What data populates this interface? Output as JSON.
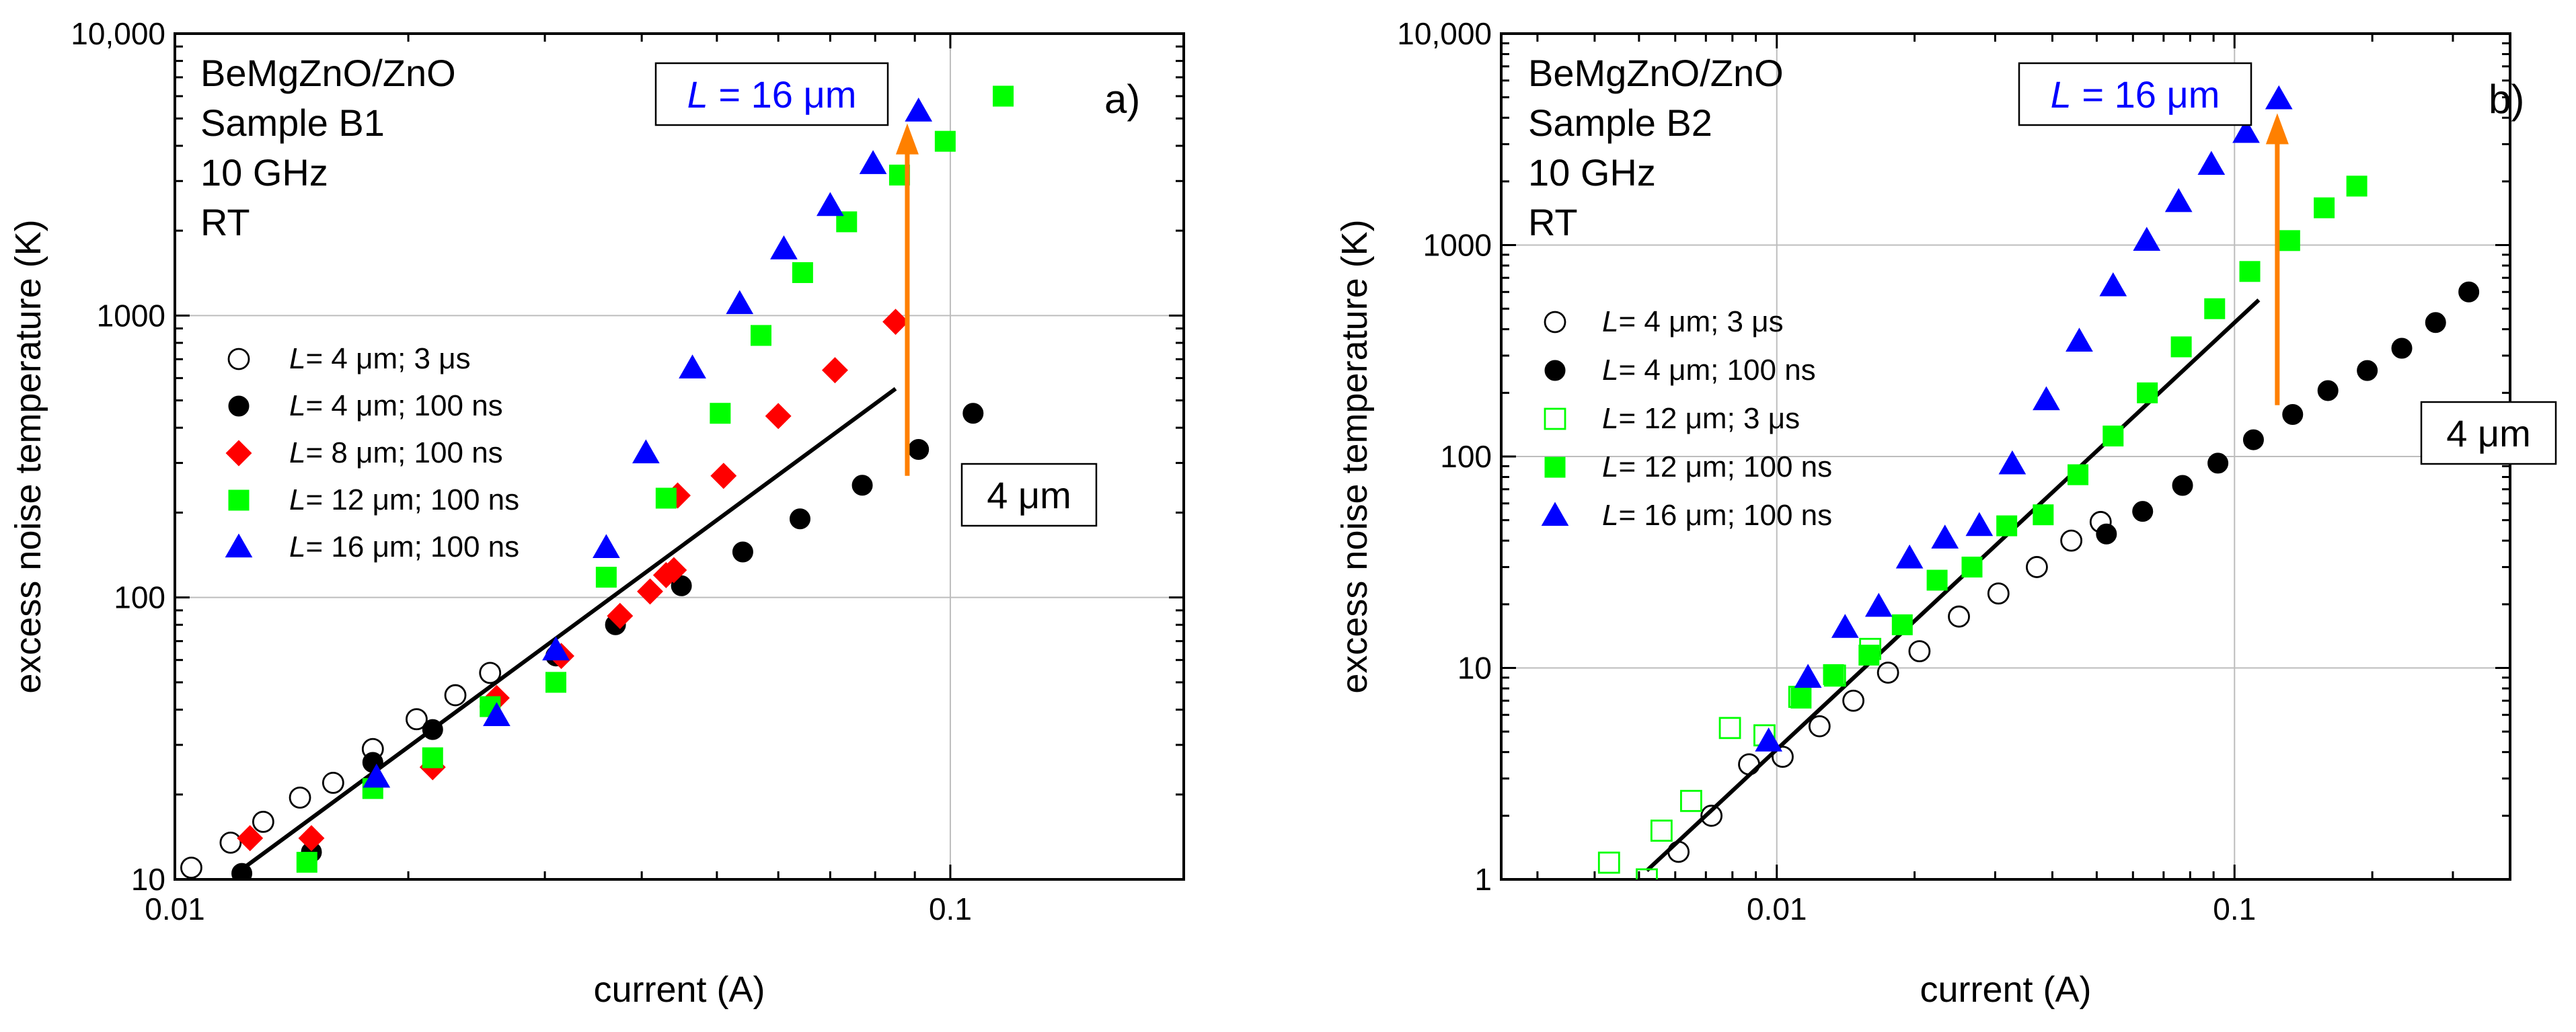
{
  "chart_data": [
    {
      "type": "scatter",
      "panel_label": "a)",
      "xlabel": "current (A)",
      "ylabel": "excess noise temperature (K)",
      "x_scale": "log",
      "y_scale": "log",
      "xlim": [
        0.01,
        0.2
      ],
      "ylim": [
        10,
        10000
      ],
      "x_ticks": [
        {
          "v": 0.01,
          "label": "0.01"
        },
        {
          "v": 0.1,
          "label": "0.1"
        }
      ],
      "y_ticks": [
        {
          "v": 10,
          "label": "10"
        },
        {
          "v": 100,
          "label": "100"
        },
        {
          "v": 1000,
          "label": "1000"
        },
        {
          "v": 10000,
          "label": "10,000"
        }
      ],
      "grid": true,
      "info_lines": [
        "BeMgZnO/ZnO",
        "Sample B1",
        "10 GHz",
        "RT"
      ],
      "box_top": {
        "italic": "L",
        "rest": " = 16 μm"
      },
      "box_bottom": "4 μm",
      "legend": [
        {
          "italic": "L",
          "rest": "= 4 μm; 3 μs",
          "series": 0
        },
        {
          "italic": "L",
          "rest": "= 4 μm; 100 ns",
          "series": 1
        },
        {
          "italic": "L",
          "rest": "= 8 μm; 100 ns",
          "series": 2
        },
        {
          "italic": "L",
          "rest": "= 12 μm; 100 ns",
          "series": 3
        },
        {
          "italic": "L",
          "rest": "= 16 μm; 100 ns",
          "series": 4
        }
      ],
      "series": [
        {
          "name": "L= 4 μm; 3 μs",
          "marker": "circle-open",
          "color": "#000000",
          "points": [
            [
              0.0105,
              11
            ],
            [
              0.0118,
              13.5
            ],
            [
              0.013,
              16
            ],
            [
              0.0145,
              19.5
            ],
            [
              0.016,
              22
            ],
            [
              0.018,
              29
            ],
            [
              0.0205,
              37
            ],
            [
              0.023,
              45
            ],
            [
              0.0255,
              54
            ]
          ]
        },
        {
          "name": "L= 4 μm; 100 ns",
          "marker": "circle",
          "color": "#000000",
          "points": [
            [
              0.0122,
              10.5
            ],
            [
              0.015,
              12.5
            ],
            [
              0.018,
              26
            ],
            [
              0.0215,
              34
            ],
            [
              0.0255,
              41
            ],
            [
              0.031,
              62
            ],
            [
              0.037,
              80
            ],
            [
              0.045,
              110
            ],
            [
              0.054,
              145
            ],
            [
              0.064,
              190
            ],
            [
              0.077,
              250
            ],
            [
              0.091,
              335
            ],
            [
              0.107,
              450
            ]
          ]
        },
        {
          "name": "L= 8 μm; 100 ns",
          "marker": "diamond",
          "color": "#ff0000",
          "points": [
            [
              0.0125,
              14
            ],
            [
              0.015,
              14
            ],
            [
              0.0215,
              25
            ],
            [
              0.026,
              44
            ],
            [
              0.0315,
              62
            ],
            [
              0.0375,
              86
            ],
            [
              0.041,
              105
            ],
            [
              0.043,
              120
            ],
            [
              0.044,
              125
            ],
            [
              0.0445,
              230
            ],
            [
              0.051,
              270
            ],
            [
              0.06,
              440
            ],
            [
              0.071,
              640
            ],
            [
              0.085,
              950
            ]
          ]
        },
        {
          "name": "L= 12 μm; 100 ns",
          "marker": "square",
          "color": "#00ff00",
          "points": [
            [
              0.0148,
              11.5
            ],
            [
              0.018,
              21
            ],
            [
              0.0215,
              27
            ],
            [
              0.0255,
              41
            ],
            [
              0.031,
              50
            ],
            [
              0.036,
              118
            ],
            [
              0.043,
              225
            ],
            [
              0.0505,
              450
            ],
            [
              0.057,
              850
            ],
            [
              0.0645,
              1420
            ],
            [
              0.0735,
              2150
            ],
            [
              0.086,
              3150
            ],
            [
              0.0985,
              4150
            ],
            [
              0.117,
              6000
            ]
          ]
        },
        {
          "name": "L= 16 μm; 100 ns",
          "marker": "triangle",
          "color": "#0000ff",
          "points": [
            [
              0.0182,
              23
            ],
            [
              0.026,
              38
            ],
            [
              0.031,
              65
            ],
            [
              0.036,
              150
            ],
            [
              0.0405,
              325
            ],
            [
              0.0465,
              650
            ],
            [
              0.0535,
              1100
            ],
            [
              0.061,
              1720
            ],
            [
              0.07,
              2450
            ],
            [
              0.0795,
              3450
            ],
            [
              0.091,
              5300
            ]
          ]
        }
      ],
      "fit_line": [
        [
          0.012,
          10.5
        ],
        [
          0.085,
          550
        ]
      ],
      "arrow": {
        "x": 0.088,
        "y_from": 270,
        "y_to": 4800,
        "color": "#ff8000"
      }
    },
    {
      "type": "scatter",
      "panel_label": "b)",
      "xlabel": "current (A)",
      "ylabel": "excess noise temperature (K)",
      "x_scale": "log",
      "y_scale": "log",
      "xlim": [
        0.0025,
        0.4
      ],
      "ylim": [
        1,
        10000
      ],
      "x_ticks": [
        {
          "v": 0.01,
          "label": "0.01"
        },
        {
          "v": 0.1,
          "label": "0.1"
        }
      ],
      "y_ticks": [
        {
          "v": 1,
          "label": "1"
        },
        {
          "v": 10,
          "label": "10"
        },
        {
          "v": 100,
          "label": "100"
        },
        {
          "v": 1000,
          "label": "1000"
        },
        {
          "v": 10000,
          "label": "10,000"
        }
      ],
      "grid": true,
      "info_lines": [
        "BeMgZnO/ZnO",
        "Sample B2",
        "10 GHz",
        "RT"
      ],
      "box_top": {
        "italic": "L",
        "rest": " = 16 μm"
      },
      "box_bottom": "4 μm",
      "legend": [
        {
          "italic": "L",
          "rest": "= 4 μm; 3 μs",
          "series": 0
        },
        {
          "italic": "L",
          "rest": "= 4 μm; 100 ns",
          "series": 1
        },
        {
          "italic": "L",
          "rest": "= 12 μm; 3 μs",
          "series": 2
        },
        {
          "italic": "L",
          "rest": "= 12 μm; 100 ns",
          "series": 3
        },
        {
          "italic": "L",
          "rest": "= 16 μm; 100 ns",
          "series": 4
        }
      ],
      "series": [
        {
          "name": "L= 4 μm; 3 μs",
          "marker": "circle-open",
          "color": "#000000",
          "points": [
            [
              0.0061,
              1.35
            ],
            [
              0.0072,
              2.0
            ],
            [
              0.0087,
              3.5
            ],
            [
              0.0103,
              3.8
            ],
            [
              0.0124,
              5.3
            ],
            [
              0.0147,
              7.0
            ],
            [
              0.0175,
              9.5
            ],
            [
              0.0205,
              12
            ],
            [
              0.025,
              17.5
            ],
            [
              0.0305,
              22.5
            ],
            [
              0.037,
              30
            ],
            [
              0.044,
              40
            ],
            [
              0.051,
              49
            ]
          ]
        },
        {
          "name": "L= 4 μm; 100 ns",
          "marker": "circle",
          "color": "#000000",
          "points": [
            [
              0.0525,
              43
            ],
            [
              0.063,
              55
            ],
            [
              0.077,
              73
            ],
            [
              0.092,
              93
            ],
            [
              0.11,
              120
            ],
            [
              0.134,
              158
            ],
            [
              0.16,
              205
            ],
            [
              0.195,
              255
            ],
            [
              0.232,
              325
            ],
            [
              0.275,
              430
            ],
            [
              0.325,
              600
            ]
          ]
        },
        {
          "name": "L= 12 μm; 3 μs",
          "marker": "square-open",
          "color": "#00ff00",
          "points": [
            [
              0.0043,
              1.2
            ],
            [
              0.0052,
              1.0
            ],
            [
              0.0056,
              1.7
            ],
            [
              0.0065,
              2.35
            ],
            [
              0.0079,
              5.2
            ],
            [
              0.0094,
              4.8
            ],
            [
              0.0112,
              7.3
            ],
            [
              0.0134,
              9.2
            ],
            [
              0.016,
              12.3
            ]
          ]
        },
        {
          "name": "L= 12 μm; 100 ns",
          "marker": "square",
          "color": "#00ff00",
          "points": [
            [
              0.0113,
              7.2
            ],
            [
              0.0133,
              9.3
            ],
            [
              0.0159,
              11.5
            ],
            [
              0.0188,
              16
            ],
            [
              0.0224,
              26
            ],
            [
              0.0267,
              30
            ],
            [
              0.0318,
              47
            ],
            [
              0.0382,
              53
            ],
            [
              0.0455,
              82
            ],
            [
              0.0543,
              125
            ],
            [
              0.0645,
              200
            ],
            [
              0.0765,
              330
            ],
            [
              0.0905,
              500
            ],
            [
              0.108,
              750
            ],
            [
              0.132,
              1050
            ],
            [
              0.157,
              1500
            ],
            [
              0.185,
              1900
            ]
          ]
        },
        {
          "name": "L= 16 μm; 100 ns",
          "marker": "triangle",
          "color": "#0000ff",
          "points": [
            [
              0.0096,
              4.5
            ],
            [
              0.0117,
              9.0
            ],
            [
              0.0141,
              15.5
            ],
            [
              0.0167,
              19.5
            ],
            [
              0.0195,
              33
            ],
            [
              0.0233,
              41
            ],
            [
              0.0277,
              47
            ],
            [
              0.0327,
              92
            ],
            [
              0.0388,
              185
            ],
            [
              0.0458,
              350
            ],
            [
              0.0543,
              640
            ],
            [
              0.0643,
              1050
            ],
            [
              0.0755,
              1600
            ],
            [
              0.089,
              2400
            ],
            [
              0.106,
              3400
            ],
            [
              0.125,
              4900
            ]
          ]
        }
      ],
      "fit_line": [
        [
          0.0052,
          1.1
        ],
        [
          0.113,
          550
        ]
      ],
      "arrow": {
        "x": 0.124,
        "y_from": 175,
        "y_to": 4200,
        "color": "#ff8000"
      }
    }
  ]
}
